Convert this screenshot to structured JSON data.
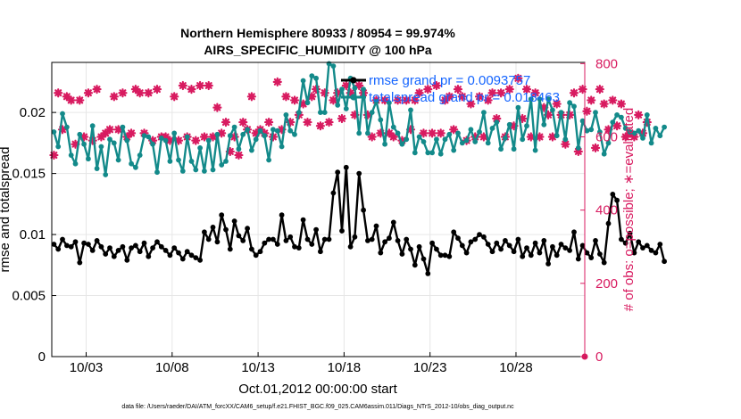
{
  "chart_data": {
    "type": "line",
    "title_line1": "Northern Hemisphere 80933 / 80954 = 99.974%",
    "title_line2": "AIRS_SPECIFIC_HUMIDITY @ 100 hPa",
    "xlabel": "Oct.01,2012 00:00:00 start",
    "ylabel_left": "rmse and totalspread",
    "ylabel_right": "# of obs: o=possible; ∗=evaluated",
    "footnote": "data file: /Users/raeder/DAI/ATM_forcXX/CAM6_setup/f.e21.FHIST_BGC.f09_025.CAM6assim.011/Diags_NTrS_2012-10/obs_diag_output.nc",
    "x_ticks": [
      {
        "day": 2.0,
        "label": "10/03"
      },
      {
        "day": 7.0,
        "label": "10/08"
      },
      {
        "day": 12.0,
        "label": "10/13"
      },
      {
        "day": 17.0,
        "label": "10/18"
      },
      {
        "day": 22.0,
        "label": "10/23"
      },
      {
        "day": 27.0,
        "label": "10/28"
      }
    ],
    "y_ticks_left": [
      {
        "value": 0,
        "label": "0"
      },
      {
        "value": 0.005,
        "label": "0.005"
      },
      {
        "value": 0.01,
        "label": "0.01"
      },
      {
        "value": 0.015,
        "label": "0.015"
      },
      {
        "value": 0.02,
        "label": "0.02"
      }
    ],
    "y_ticks_right": [
      {
        "value": 0,
        "label": "0"
      },
      {
        "value": 200,
        "label": "200"
      },
      {
        "value": 400,
        "label": "400"
      },
      {
        "value": 600,
        "label": "600"
      },
      {
        "value": 800,
        "label": "800"
      }
    ],
    "xlim": [
      0.0,
      31.0
    ],
    "ylim_left": [
      0,
      0.0241
    ],
    "ylim_right": [
      0,
      803.3
    ],
    "time_step_days": 0.25,
    "series": [
      {
        "name": "rmse grand pr = 0.0093757",
        "color": "#000000",
        "marker": "circle",
        "values": [
          0.0092,
          0.0088,
          0.0096,
          0.0091,
          0.009,
          0.0094,
          0.0077,
          0.0093,
          0.0092,
          0.0087,
          0.0095,
          0.009,
          0.0084,
          0.0089,
          0.0082,
          0.0087,
          0.009,
          0.0079,
          0.0089,
          0.0091,
          0.0086,
          0.0093,
          0.0082,
          0.0089,
          0.0094,
          0.009,
          0.0087,
          0.0083,
          0.0089,
          0.0085,
          0.008,
          0.0086,
          0.0083,
          0.0081,
          0.0079,
          0.0102,
          0.0096,
          0.0106,
          0.0094,
          0.0116,
          0.0104,
          0.0088,
          0.0111,
          0.0099,
          0.0095,
          0.0105,
          0.0088,
          0.0083,
          0.0086,
          0.0093,
          0.0096,
          0.0096,
          0.0092,
          0.0116,
          0.0095,
          0.0098,
          0.009,
          0.0089,
          0.0112,
          0.0096,
          0.0092,
          0.0104,
          0.0086,
          0.0096,
          0.0096,
          0.0134,
          0.0151,
          0.0103,
          0.0155,
          0.009,
          0.0098,
          0.015,
          0.012,
          0.0095,
          0.0096,
          0.0107,
          0.0085,
          0.0094,
          0.0097,
          0.011,
          0.0095,
          0.0084,
          0.0096,
          0.0088,
          0.0075,
          0.009,
          0.008,
          0.0068,
          0.0093,
          0.0088,
          0.0083,
          0.0083,
          0.0082,
          0.0102,
          0.0097,
          0.0091,
          0.0085,
          0.0094,
          0.0096,
          0.01,
          0.0098,
          0.0092,
          0.0086,
          0.0093,
          0.0088,
          0.0095,
          0.0091,
          0.0086,
          0.0096,
          0.0082,
          0.0089,
          0.0083,
          0.0093,
          0.0085,
          0.0095,
          0.0076,
          0.009,
          0.0083,
          0.0092,
          0.0089,
          0.0087,
          0.0102,
          0.008,
          0.0091,
          0.0085,
          0.0081,
          0.0095,
          0.0084,
          0.0077,
          0.0109,
          0.0133,
          0.0128,
          0.0096,
          0.0093,
          0.0101,
          0.0085,
          0.0094,
          0.0089,
          0.0091,
          0.0087,
          0.0085,
          0.0092,
          0.0078
        ]
      },
      {
        "name": "totalspread grand pr = 0.018463",
        "color": "#138a8a",
        "marker": "circle",
        "values": [
          0.0184,
          0.0172,
          0.0199,
          0.0188,
          0.0165,
          0.0158,
          0.0182,
          0.0174,
          0.0162,
          0.0189,
          0.0154,
          0.0172,
          0.0149,
          0.0178,
          0.0175,
          0.0161,
          0.0188,
          0.0177,
          0.0158,
          0.0155,
          0.0165,
          0.0181,
          0.018,
          0.0174,
          0.0151,
          0.0179,
          0.0177,
          0.016,
          0.0183,
          0.0161,
          0.0152,
          0.018,
          0.016,
          0.0153,
          0.0171,
          0.0152,
          0.0177,
          0.0153,
          0.0182,
          0.0157,
          0.016,
          0.0181,
          0.0188,
          0.017,
          0.0182,
          0.0186,
          0.0169,
          0.0178,
          0.0185,
          0.0181,
          0.0161,
          0.0186,
          0.0185,
          0.0172,
          0.0198,
          0.0185,
          0.0182,
          0.02,
          0.0226,
          0.0208,
          0.023,
          0.0228,
          0.02,
          0.02,
          0.024,
          0.0238,
          0.0206,
          0.0219,
          0.0203,
          0.0228,
          0.022,
          0.0183,
          0.0219,
          0.0183,
          0.02,
          0.0209,
          0.0194,
          0.0174,
          0.0208,
          0.0188,
          0.0183,
          0.0174,
          0.0178,
          0.0202,
          0.0167,
          0.018,
          0.0176,
          0.0167,
          0.0167,
          0.0178,
          0.0166,
          0.0178,
          0.0182,
          0.0169,
          0.0183,
          0.0175,
          0.0177,
          0.0186,
          0.0176,
          0.0184,
          0.02,
          0.0175,
          0.0187,
          0.0192,
          0.017,
          0.0179,
          0.019,
          0.017,
          0.0204,
          0.0178,
          0.0189,
          0.0211,
          0.0169,
          0.0211,
          0.019,
          0.0211,
          0.0202,
          0.0181,
          0.02,
          0.0178,
          0.0208,
          0.0205,
          0.0171,
          0.0193,
          0.0185,
          0.0186,
          0.02,
          0.0184,
          0.0166,
          0.0175,
          0.0192,
          0.0198,
          0.0196,
          0.0187,
          0.0184,
          0.0183,
          0.0185,
          0.0179,
          0.0198,
          0.0175,
          0.0187,
          0.0181,
          0.0188
        ]
      }
    ],
    "obs_evaluated": [
      550,
      720,
      620,
      710,
      700,
      580,
      700,
      600,
      720,
      590,
      730,
      600,
      610,
      620,
      710,
      620,
      720,
      600,
      610,
      730,
      720,
      610,
      720,
      590,
      730,
      600,
      600,
      590,
      710,
      590,
      740,
      600,
      730,
      590,
      740,
      600,
      740,
      600,
      680,
      610,
      640,
      560,
      600,
      550,
      640,
      620,
      710,
      610,
      620,
      610,
      640,
      600,
      750,
      620,
      710,
      640,
      700,
      660,
      690,
      640,
      710,
      730,
      630,
      720,
      640,
      700,
      720,
      650,
      740,
      720,
      660,
      740,
      720,
      660,
      600,
      700,
      610,
      700,
      610,
      600,
      700,
      590,
      700,
      620,
      700,
      720,
      610,
      730,
      610,
      740,
      610,
      700,
      710,
      620,
      730,
      710,
      590,
      690,
      600,
      710,
      600,
      700,
      720,
      650,
      720,
      600,
      730,
      630,
      760,
      650,
      730,
      600,
      720,
      600,
      680,
      660,
      600,
      690,
      660,
      580,
      660,
      720,
      560,
      730,
      670,
      700,
      570,
      730,
      690,
      620,
      700,
      630,
      690,
      600,
      610,
      600,
      660,
      610,
      640
    ]
  },
  "legend": {
    "rmse_label": "rmse grand pr = 0.0093757",
    "spread_label": "totalspread grand pr = 0.018463"
  },
  "colors": {
    "rmse": "#000000",
    "spread": "#138a8a",
    "obs": "#d81b60",
    "legend_text": "#1565ff",
    "grid": "#e6e6e6"
  }
}
